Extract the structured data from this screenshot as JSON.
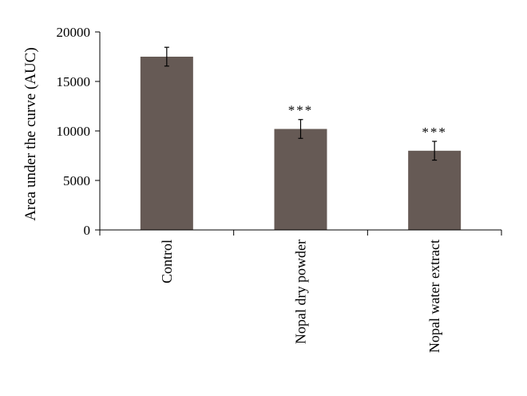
{
  "chart_data": {
    "type": "bar",
    "title": "",
    "xlabel": "",
    "ylabel": "Area under the curve (AUC)",
    "categories": [
      "Control",
      "Nopal dry powder",
      "Nopal water extract"
    ],
    "values": [
      17500,
      10200,
      8000
    ],
    "errors": [
      950,
      950,
      950
    ],
    "annotations": [
      "",
      "***",
      "***"
    ],
    "ylim": [
      0,
      20000
    ],
    "yticks": [
      0,
      5000,
      10000,
      15000,
      20000
    ],
    "ytick_labels": [
      "0",
      "5000",
      "10000",
      "15000",
      "20000"
    ],
    "grid": false,
    "legend": "none",
    "bar_color": "#665a55"
  }
}
